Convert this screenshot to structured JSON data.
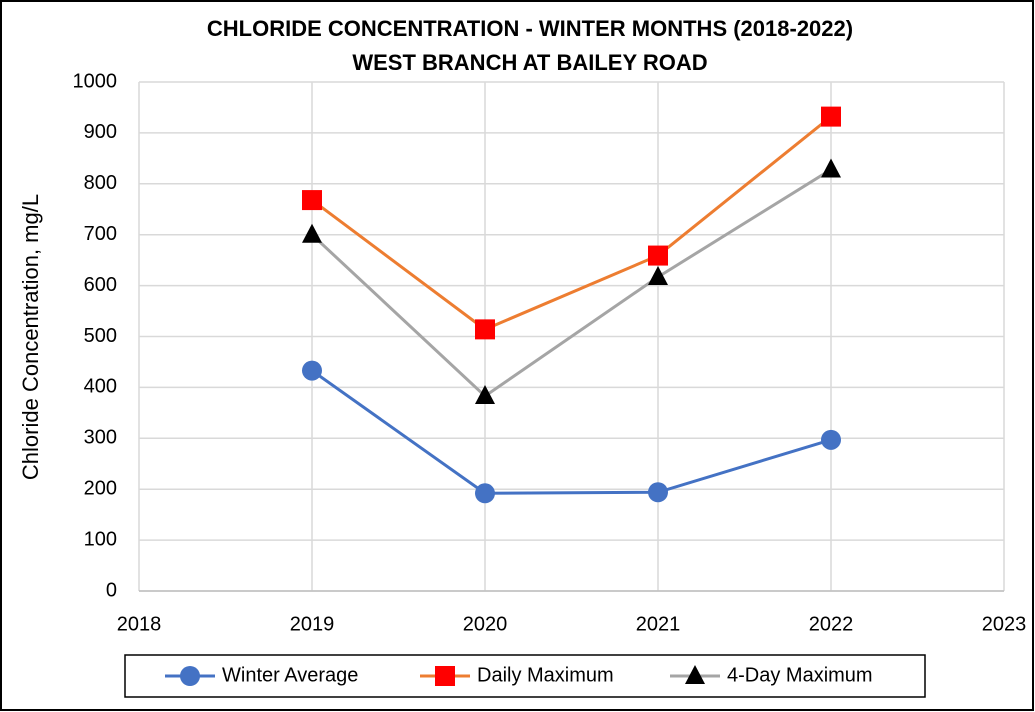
{
  "chart_data": {
    "type": "line",
    "title": "CHLORIDE CONCENTRATION  - WINTER MONTHS (2018-2022)",
    "subtitle": "WEST BRANCH AT BAILEY ROAD",
    "y_label": "Chloride Concentration, mg/L",
    "x": [
      2019,
      2020,
      2021,
      2022
    ],
    "series": [
      {
        "name": "Winter Average",
        "color": "#4472c4",
        "marker_color": "#4472c4",
        "marker": "circle",
        "values": [
          433,
          192,
          194,
          297
        ]
      },
      {
        "name": "Daily Maximum",
        "color": "#ed7d31",
        "marker_color": "#ff0000",
        "marker": "square",
        "values": [
          768,
          514,
          659,
          932
        ]
      },
      {
        "name": "4-Day Maximum",
        "color": "#a5a5a5",
        "marker_color": "#000000",
        "marker": "triangle",
        "values": [
          700,
          383,
          617,
          828
        ]
      }
    ],
    "xlim": [
      2018,
      2023
    ],
    "xticks": [
      2018,
      2019,
      2020,
      2021,
      2022,
      2023
    ],
    "ylim": [
      0,
      1000
    ],
    "yticks": [
      0,
      100,
      200,
      300,
      400,
      500,
      600,
      700,
      800,
      900,
      1000
    ],
    "grid": true,
    "legend": "bottom"
  }
}
